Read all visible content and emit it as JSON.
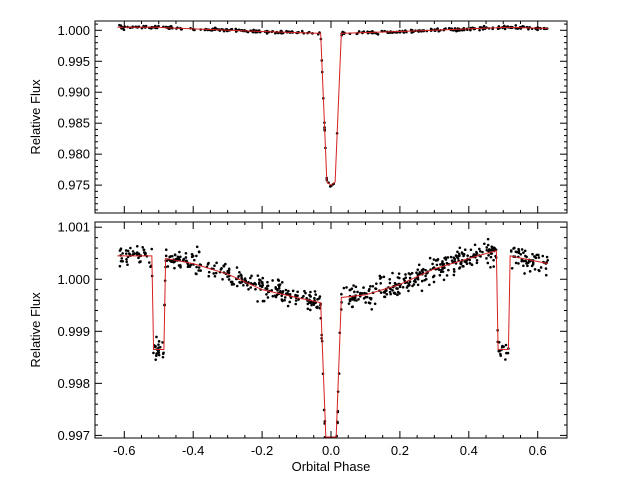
{
  "chart_data": [
    {
      "type": "scatter",
      "panel": "top",
      "xlabel": "",
      "ylabel": "Relative Flux",
      "xlim": [
        -0.685,
        0.685
      ],
      "ylim": [
        0.9705,
        1.0015
      ],
      "xticks": [
        -0.6,
        -0.4,
        -0.2,
        0.0,
        0.2,
        0.4,
        0.6
      ],
      "yticks": [
        0.975,
        0.98,
        0.985,
        0.99,
        0.995,
        1.0
      ],
      "ytick_labels": [
        "0.975",
        "0.980",
        "0.985",
        "0.990",
        "0.995",
        "1.000"
      ],
      "grid": false,
      "colors": {
        "points": "#000000",
        "model": "#d62020"
      },
      "model_x": [
        -0.62,
        -0.5,
        -0.48,
        -0.25,
        -0.03,
        -0.012,
        0.0,
        0.012,
        0.03,
        0.25,
        0.48,
        0.5,
        0.63
      ],
      "model_y": [
        1.0005,
        1.0005,
        1.0004,
        0.9999,
        0.9995,
        0.9755,
        0.975,
        0.9755,
        0.9995,
        0.9999,
        1.0004,
        1.0005,
        1.0003
      ],
      "series": []
    },
    {
      "type": "scatter",
      "panel": "bottom",
      "xlabel": "Orbital Phase",
      "ylabel": "Relative Flux",
      "xlim": [
        -0.685,
        0.685
      ],
      "ylim": [
        0.99695,
        1.0011
      ],
      "xticks": [
        -0.6,
        -0.4,
        -0.2,
        0.0,
        0.2,
        0.4,
        0.6
      ],
      "xtick_labels": [
        "-0.6",
        "-0.4",
        "-0.2",
        "0.0",
        "0.2",
        "0.4",
        "0.6"
      ],
      "yticks": [
        0.997,
        0.998,
        0.999,
        1.0,
        1.001
      ],
      "ytick_labels": [
        "0.997",
        "0.998",
        "0.999",
        "1.000",
        "1.001"
      ],
      "grid": false,
      "colors": {
        "points": "#000000",
        "model": "#d62020"
      },
      "model_x": [
        -0.62,
        -0.52,
        -0.515,
        -0.485,
        -0.48,
        -0.4,
        -0.3,
        -0.2,
        -0.1,
        -0.03,
        -0.015,
        0.015,
        0.03,
        0.1,
        0.2,
        0.3,
        0.4,
        0.48,
        0.485,
        0.515,
        0.52,
        0.63
      ],
      "model_y": [
        1.00045,
        1.00045,
        0.99865,
        0.99865,
        1.0004,
        1.0003,
        1.0001,
        0.9998,
        0.99965,
        0.99955,
        0.9965,
        0.9965,
        0.99965,
        0.9997,
        0.9999,
        1.0002,
        1.0004,
        1.00055,
        0.99865,
        0.99865,
        1.00045,
        1.0003
      ]
    }
  ]
}
